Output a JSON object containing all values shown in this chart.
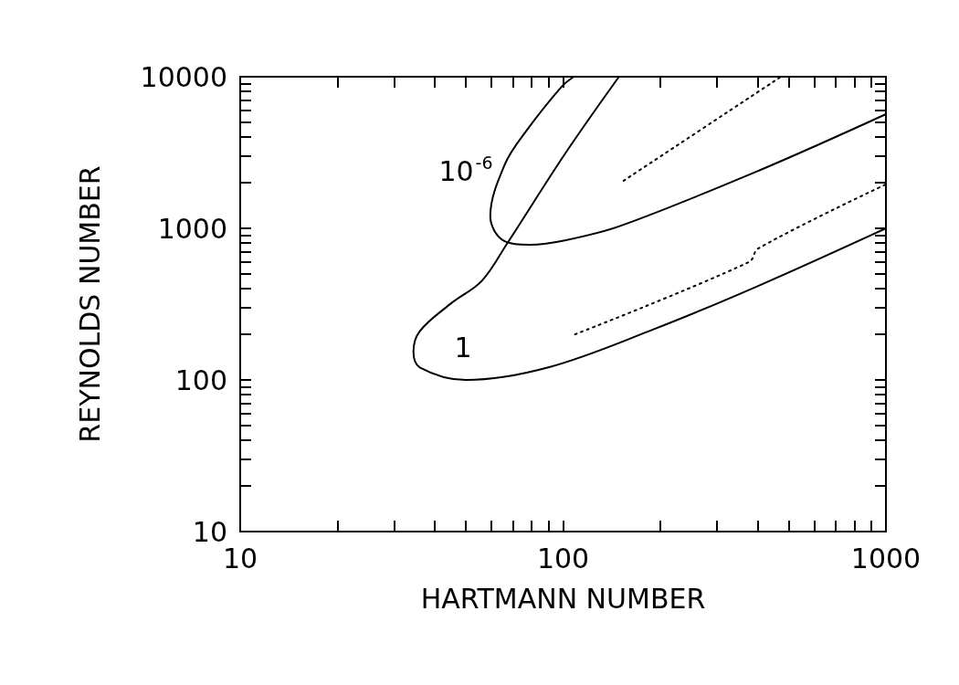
{
  "chart_data": {
    "type": "line",
    "xlabel": "HARTMANN NUMBER",
    "ylabel": "REYNOLDS NUMBER",
    "log": "xy",
    "grid": false,
    "marker": "none",
    "xlim": [
      10,
      1000
    ],
    "ylim": [
      10,
      10000
    ],
    "xticks": [
      10,
      {
        "value": 20,
        "label": null
      },
      {
        "value": 30,
        "label": null
      },
      {
        "value": 40,
        "label": null
      },
      {
        "value": 50,
        "label": null
      },
      {
        "value": 60,
        "label": null
      },
      {
        "value": 70,
        "label": null
      },
      {
        "value": 80,
        "label": null
      },
      {
        "value": 90,
        "label": null
      },
      100,
      {
        "value": 200,
        "label": null
      },
      {
        "value": 300,
        "label": null
      },
      {
        "value": 400,
        "label": null
      },
      {
        "value": 500,
        "label": null
      },
      {
        "value": 600,
        "label": null
      },
      {
        "value": 700,
        "label": null
      },
      {
        "value": 800,
        "label": null
      },
      {
        "value": 900,
        "label": null
      },
      1000
    ],
    "yticks": [
      10,
      {
        "value": 20,
        "label": null
      },
      {
        "value": 30,
        "label": null
      },
      {
        "value": 40,
        "label": null
      },
      {
        "value": 50,
        "label": null
      },
      {
        "value": 60,
        "label": null
      },
      {
        "value": 70,
        "label": null
      },
      {
        "value": 80,
        "label": null
      },
      {
        "value": 90,
        "label": null
      },
      100,
      {
        "value": 200,
        "label": null
      },
      {
        "value": 300,
        "label": null
      },
      {
        "value": 400,
        "label": null
      },
      {
        "value": 500,
        "label": null
      },
      {
        "value": 600,
        "label": null
      },
      {
        "value": 700,
        "label": null
      },
      {
        "value": 800,
        "label": null
      },
      {
        "value": 900,
        "label": null
      },
      1000,
      {
        "value": 2000,
        "label": null
      },
      {
        "value": 3000,
        "label": null
      },
      {
        "value": 4000,
        "label": null
      },
      {
        "value": 5000,
        "label": null
      },
      {
        "value": 6000,
        "label": null
      },
      {
        "value": 7000,
        "label": null
      },
      {
        "value": 8000,
        "label": null
      },
      {
        "value": 9000,
        "label": null
      },
      10000
    ],
    "series": [
      {
        "color": "#000000",
        "line_style": "solid",
        "x": [
          149,
          102,
          67,
          56,
          45,
          36,
          34.4,
          36,
          50,
          90,
          192,
          402,
          1000
        ],
        "values": [
          10000,
          3160,
          790,
          450,
          320,
          210,
          154,
          121,
          100,
          121,
          217,
          417,
          1000
        ]
      },
      {
        "color": "#000000",
        "line_style": "solid",
        "x": [
          108,
          99,
          77,
          66,
          59.5,
          65,
          79,
          102,
          151,
          409,
          1000
        ],
        "values": [
          10000,
          8600,
          4400,
          2640,
          1200,
          836,
          780,
          836,
          1040,
          2430,
          5660
        ]
      },
      {
        "color": "#000000",
        "line_style": "dotted",
        "x": [
          154,
          473
        ],
        "values": [
          2060,
          10000
        ]
      },
      {
        "color": "#000000",
        "line_style": "dotted",
        "x": [
          109,
          377,
          402,
          1000
        ],
        "values": [
          200,
          600,
          736,
          1950
        ]
      }
    ],
    "annotations": [
      "10$^{-6}$",
      "1"
    ]
  }
}
